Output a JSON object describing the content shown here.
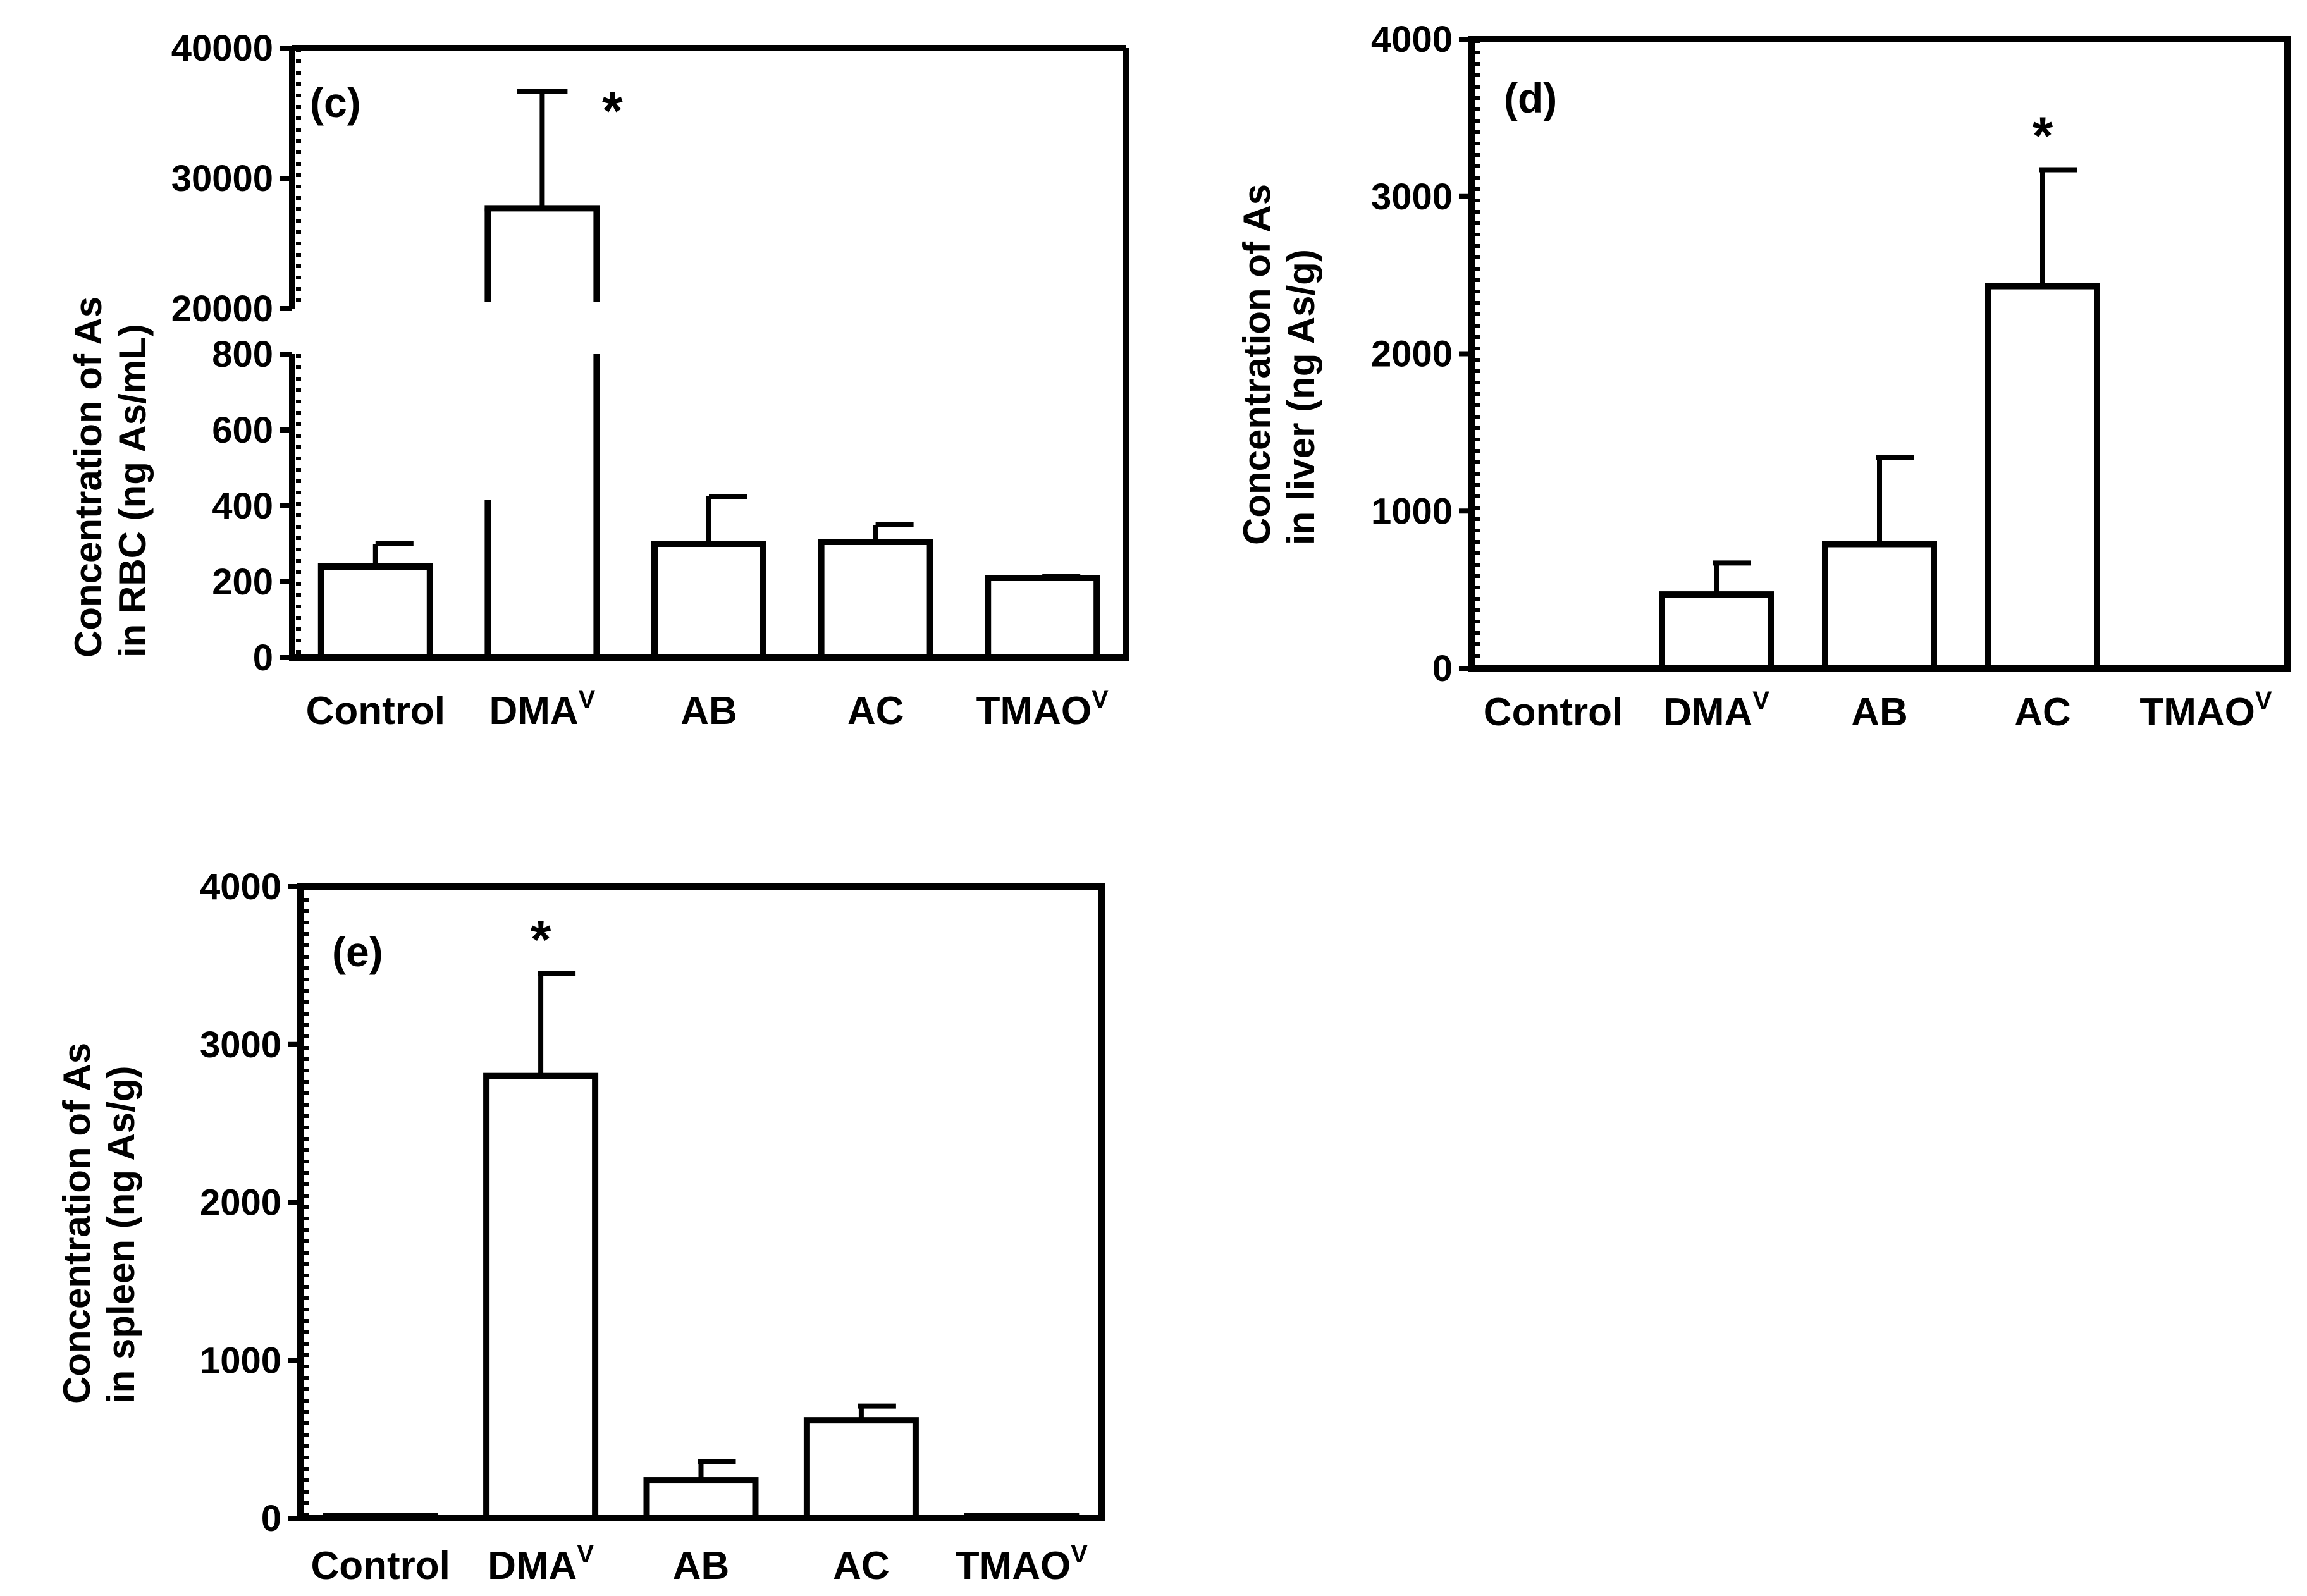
{
  "chart_data": [
    {
      "id": "c",
      "type": "bar",
      "panel_label": "(c)",
      "ylabel_lines": [
        "Concentration of As",
        "in RBC (ng As/mL)"
      ],
      "categories": [
        "Control",
        "DMA",
        "AB",
        "AC",
        "TMAO"
      ],
      "category_superscripts": [
        "",
        "V",
        "",
        "",
        "V"
      ],
      "values": [
        240,
        27700,
        300,
        305,
        210
      ],
      "errors": [
        60,
        9000,
        125,
        45,
        5
      ],
      "significance": [
        "",
        "*",
        "",
        "",
        ""
      ],
      "axis_break": true,
      "lower_ylim": [
        0,
        800
      ],
      "upper_ylim": [
        20000,
        40000
      ],
      "yticks_lower": [
        "0",
        "200",
        "400",
        "600",
        "800"
      ],
      "yticks_upper": [
        "20000",
        "30000",
        "40000"
      ]
    },
    {
      "id": "d",
      "type": "bar",
      "panel_label": "(d)",
      "ylabel_lines": [
        "Concentration of As",
        "in liver (ng As/g)"
      ],
      "categories": [
        "Control",
        "DMA",
        "AB",
        "AC",
        "TMAO"
      ],
      "category_superscripts": [
        "",
        "V",
        "",
        "",
        "V"
      ],
      "values": [
        0,
        470,
        790,
        2430,
        0
      ],
      "errors": [
        0,
        200,
        550,
        740,
        0
      ],
      "significance": [
        "",
        "",
        "",
        "*",
        ""
      ],
      "ylim": [
        0,
        4000
      ],
      "yticks": [
        "0",
        "1000",
        "2000",
        "3000",
        "4000"
      ]
    },
    {
      "id": "e",
      "type": "bar",
      "panel_label": "(e)",
      "ylabel_lines": [
        "Concentration of As",
        "in spleen (ng As/g)"
      ],
      "categories": [
        "Control",
        "DMA",
        "AB",
        "AC",
        "TMAO"
      ],
      "category_superscripts": [
        "",
        "V",
        "",
        "",
        "V"
      ],
      "values": [
        15,
        2800,
        240,
        620,
        15
      ],
      "errors": [
        0,
        650,
        120,
        90,
        0
      ],
      "significance": [
        "",
        "*",
        "",
        "",
        ""
      ],
      "ylim": [
        0,
        4000
      ],
      "yticks": [
        "0",
        "1000",
        "2000",
        "3000",
        "4000"
      ]
    }
  ]
}
